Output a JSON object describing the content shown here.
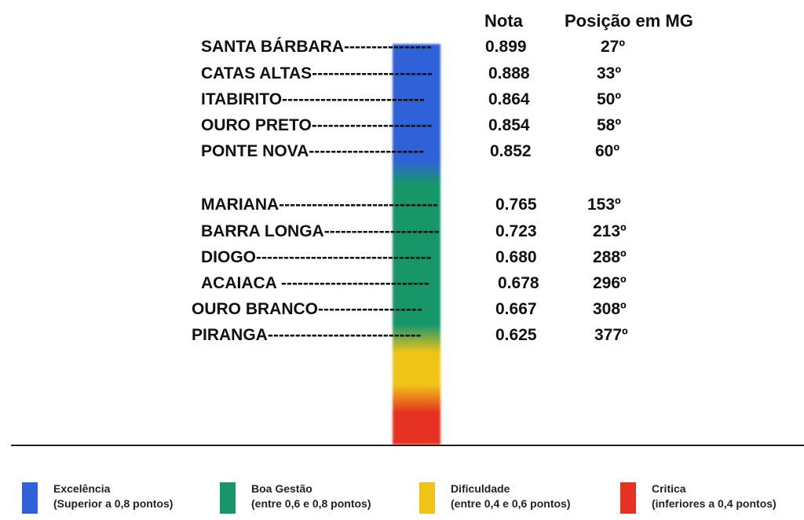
{
  "headers": {
    "nota": "Nota",
    "posicao": "Posição em MG"
  },
  "rows": [
    {
      "line": "SANTA BÁRBARA----------------",
      "score": "0.899",
      "rank": "27º"
    },
    {
      "line": "CATAS ALTAS----------------------",
      "score": "0.888",
      "rank": "33º"
    },
    {
      "line": "ITABIRITO--------------------------",
      "score": "0.864",
      "rank": "50º"
    },
    {
      "line": "OURO PRETO----------------------",
      "score": "0.854",
      "rank": "58º"
    },
    {
      "line": "PONTE NOVA---------------------",
      "score": "0.852",
      "rank": "60º"
    },
    {
      "line": "MARIANA-----------------------------",
      "score": "0.765",
      "rank": "153º"
    },
    {
      "line": "BARRA LONGA---------------------",
      "score": "0.723",
      "rank": "213º"
    },
    {
      "line": "DIOGO--------------------------------",
      "score": "0.680",
      "rank": "288º"
    },
    {
      "line": "ACAIACA ---------------------------",
      "score": "0.678",
      "rank": "296º"
    },
    {
      "line": "OURO BRANCO-------------------",
      "score": "0.667",
      "rank": "308º"
    },
    {
      "line": "PIRANGA----------------------------",
      "score": "0.625",
      "rank": "377º"
    }
  ],
  "legend": [
    {
      "label": "Excelência",
      "desc": "(Superior a 0,8 pontos)",
      "color": "#2f62d8"
    },
    {
      "label": "Boa Gestão",
      "desc": "(entre 0,6 e 0,8 pontos)",
      "color": "#17966a"
    },
    {
      "label": "Dificuldade",
      "desc": "(entre 0,4 e 0,6 pontos)",
      "color": "#f0c417"
    },
    {
      "label": "Critica",
      "desc": "(inferiores a 0,4 pontos)",
      "color": "#e63222"
    }
  ],
  "chart_data": {
    "type": "table",
    "columns": [
      "Nota",
      "Posição em MG"
    ],
    "categories": [
      "SANTA BÁRBARA",
      "CATAS ALTAS",
      "ITABIRITO",
      "OURO PRETO",
      "PONTE NOVA",
      "MARIANA",
      "BARRA LONGA",
      "DIOGO",
      "ACAIACA",
      "OURO BRANCO",
      "PIRANGA"
    ],
    "values": [
      0.899,
      0.888,
      0.864,
      0.854,
      0.852,
      0.765,
      0.723,
      0.68,
      0.678,
      0.667,
      0.625
    ],
    "ranks": [
      27,
      33,
      50,
      58,
      60,
      153,
      213,
      288,
      296,
      308,
      377
    ],
    "colors": [
      "#2f62d8",
      "#17966a",
      "#f0c417",
      "#e63222"
    ]
  }
}
